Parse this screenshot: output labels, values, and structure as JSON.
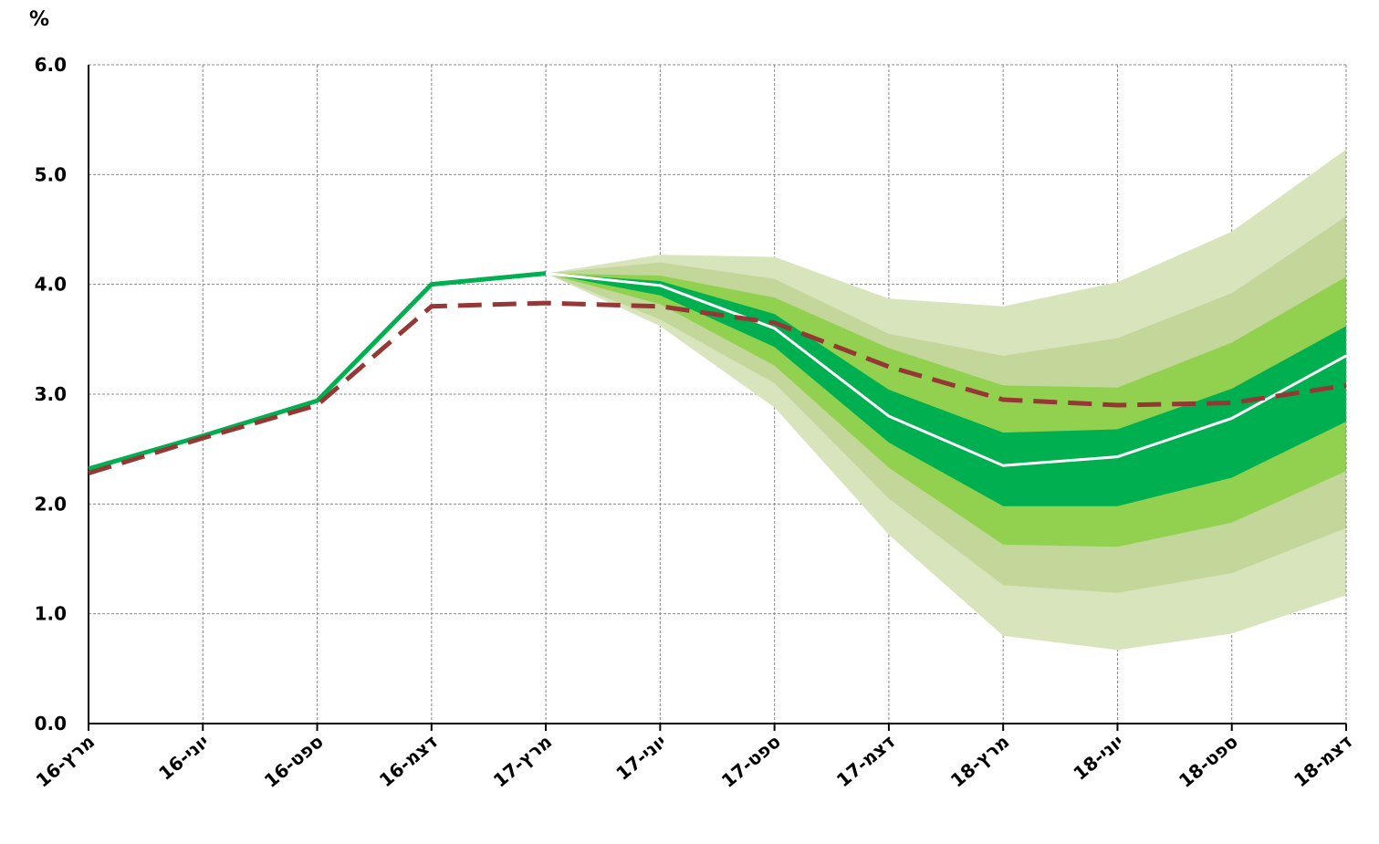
{
  "chart_data": {
    "type": "fan",
    "y_label": "%",
    "categories": [
      "מרץ-16",
      "יוני-16",
      "ספט-16",
      "דצמ-16",
      "מרץ-17",
      "יוני-17",
      "ספט-17",
      "דצמ-17",
      "מרץ-18",
      "יוני-18",
      "ספט-18",
      "דצמ-18"
    ],
    "ylim": [
      0,
      6
    ],
    "yticks": [
      {
        "value": 0,
        "label": "0.0"
      },
      {
        "value": 1,
        "label": "1.0"
      },
      {
        "value": 2,
        "label": "2.0"
      },
      {
        "value": 3,
        "label": "3.0"
      },
      {
        "value": 4,
        "label": "4.0"
      },
      {
        "value": 5,
        "label": "5.0"
      },
      {
        "value": 6,
        "label": "6.0"
      }
    ],
    "grid": true,
    "bands": [
      {
        "color": "#d8e4bc",
        "upper": [
          null,
          null,
          null,
          null,
          4.1,
          4.27,
          4.25,
          3.87,
          3.8,
          4.02,
          4.48,
          5.23
        ],
        "lower": [
          null,
          null,
          null,
          null,
          4.1,
          3.62,
          2.88,
          1.72,
          0.8,
          0.67,
          0.82,
          1.17
        ]
      },
      {
        "color": "#c4d79b",
        "upper": [
          null,
          null,
          null,
          null,
          4.1,
          4.2,
          4.05,
          3.55,
          3.35,
          3.51,
          3.92,
          4.62
        ],
        "lower": [
          null,
          null,
          null,
          null,
          4.1,
          3.68,
          3.1,
          2.05,
          1.26,
          1.19,
          1.37,
          1.78
        ]
      },
      {
        "color": "#92d050",
        "upper": [
          null,
          null,
          null,
          null,
          4.1,
          4.08,
          3.88,
          3.42,
          3.08,
          3.06,
          3.47,
          4.07
        ],
        "lower": [
          null,
          null,
          null,
          null,
          4.1,
          3.82,
          3.26,
          2.33,
          1.63,
          1.61,
          1.83,
          2.3
        ]
      },
      {
        "color": "#00b050",
        "upper": [
          null,
          null,
          null,
          null,
          4.1,
          4.03,
          3.73,
          3.04,
          2.65,
          2.68,
          3.05,
          3.62
        ],
        "lower": [
          null,
          null,
          null,
          null,
          4.1,
          3.9,
          3.43,
          2.56,
          1.98,
          1.98,
          2.24,
          2.75
        ]
      }
    ],
    "series": [
      {
        "color": "#00b050",
        "dash": false,
        "values": [
          2.32,
          2.62,
          2.94,
          4.0,
          4.1,
          null,
          null,
          null,
          null,
          null,
          null,
          null
        ]
      },
      {
        "color": "#ffffff",
        "dash": false,
        "values": [
          null,
          null,
          null,
          null,
          4.1,
          3.99,
          3.6,
          2.8,
          2.35,
          2.43,
          2.78,
          3.35
        ]
      },
      {
        "color": "#953735",
        "dash": true,
        "values": [
          2.28,
          2.6,
          2.9,
          3.8,
          3.83,
          3.8,
          3.65,
          3.25,
          2.95,
          2.9,
          2.92,
          3.08
        ]
      }
    ]
  }
}
